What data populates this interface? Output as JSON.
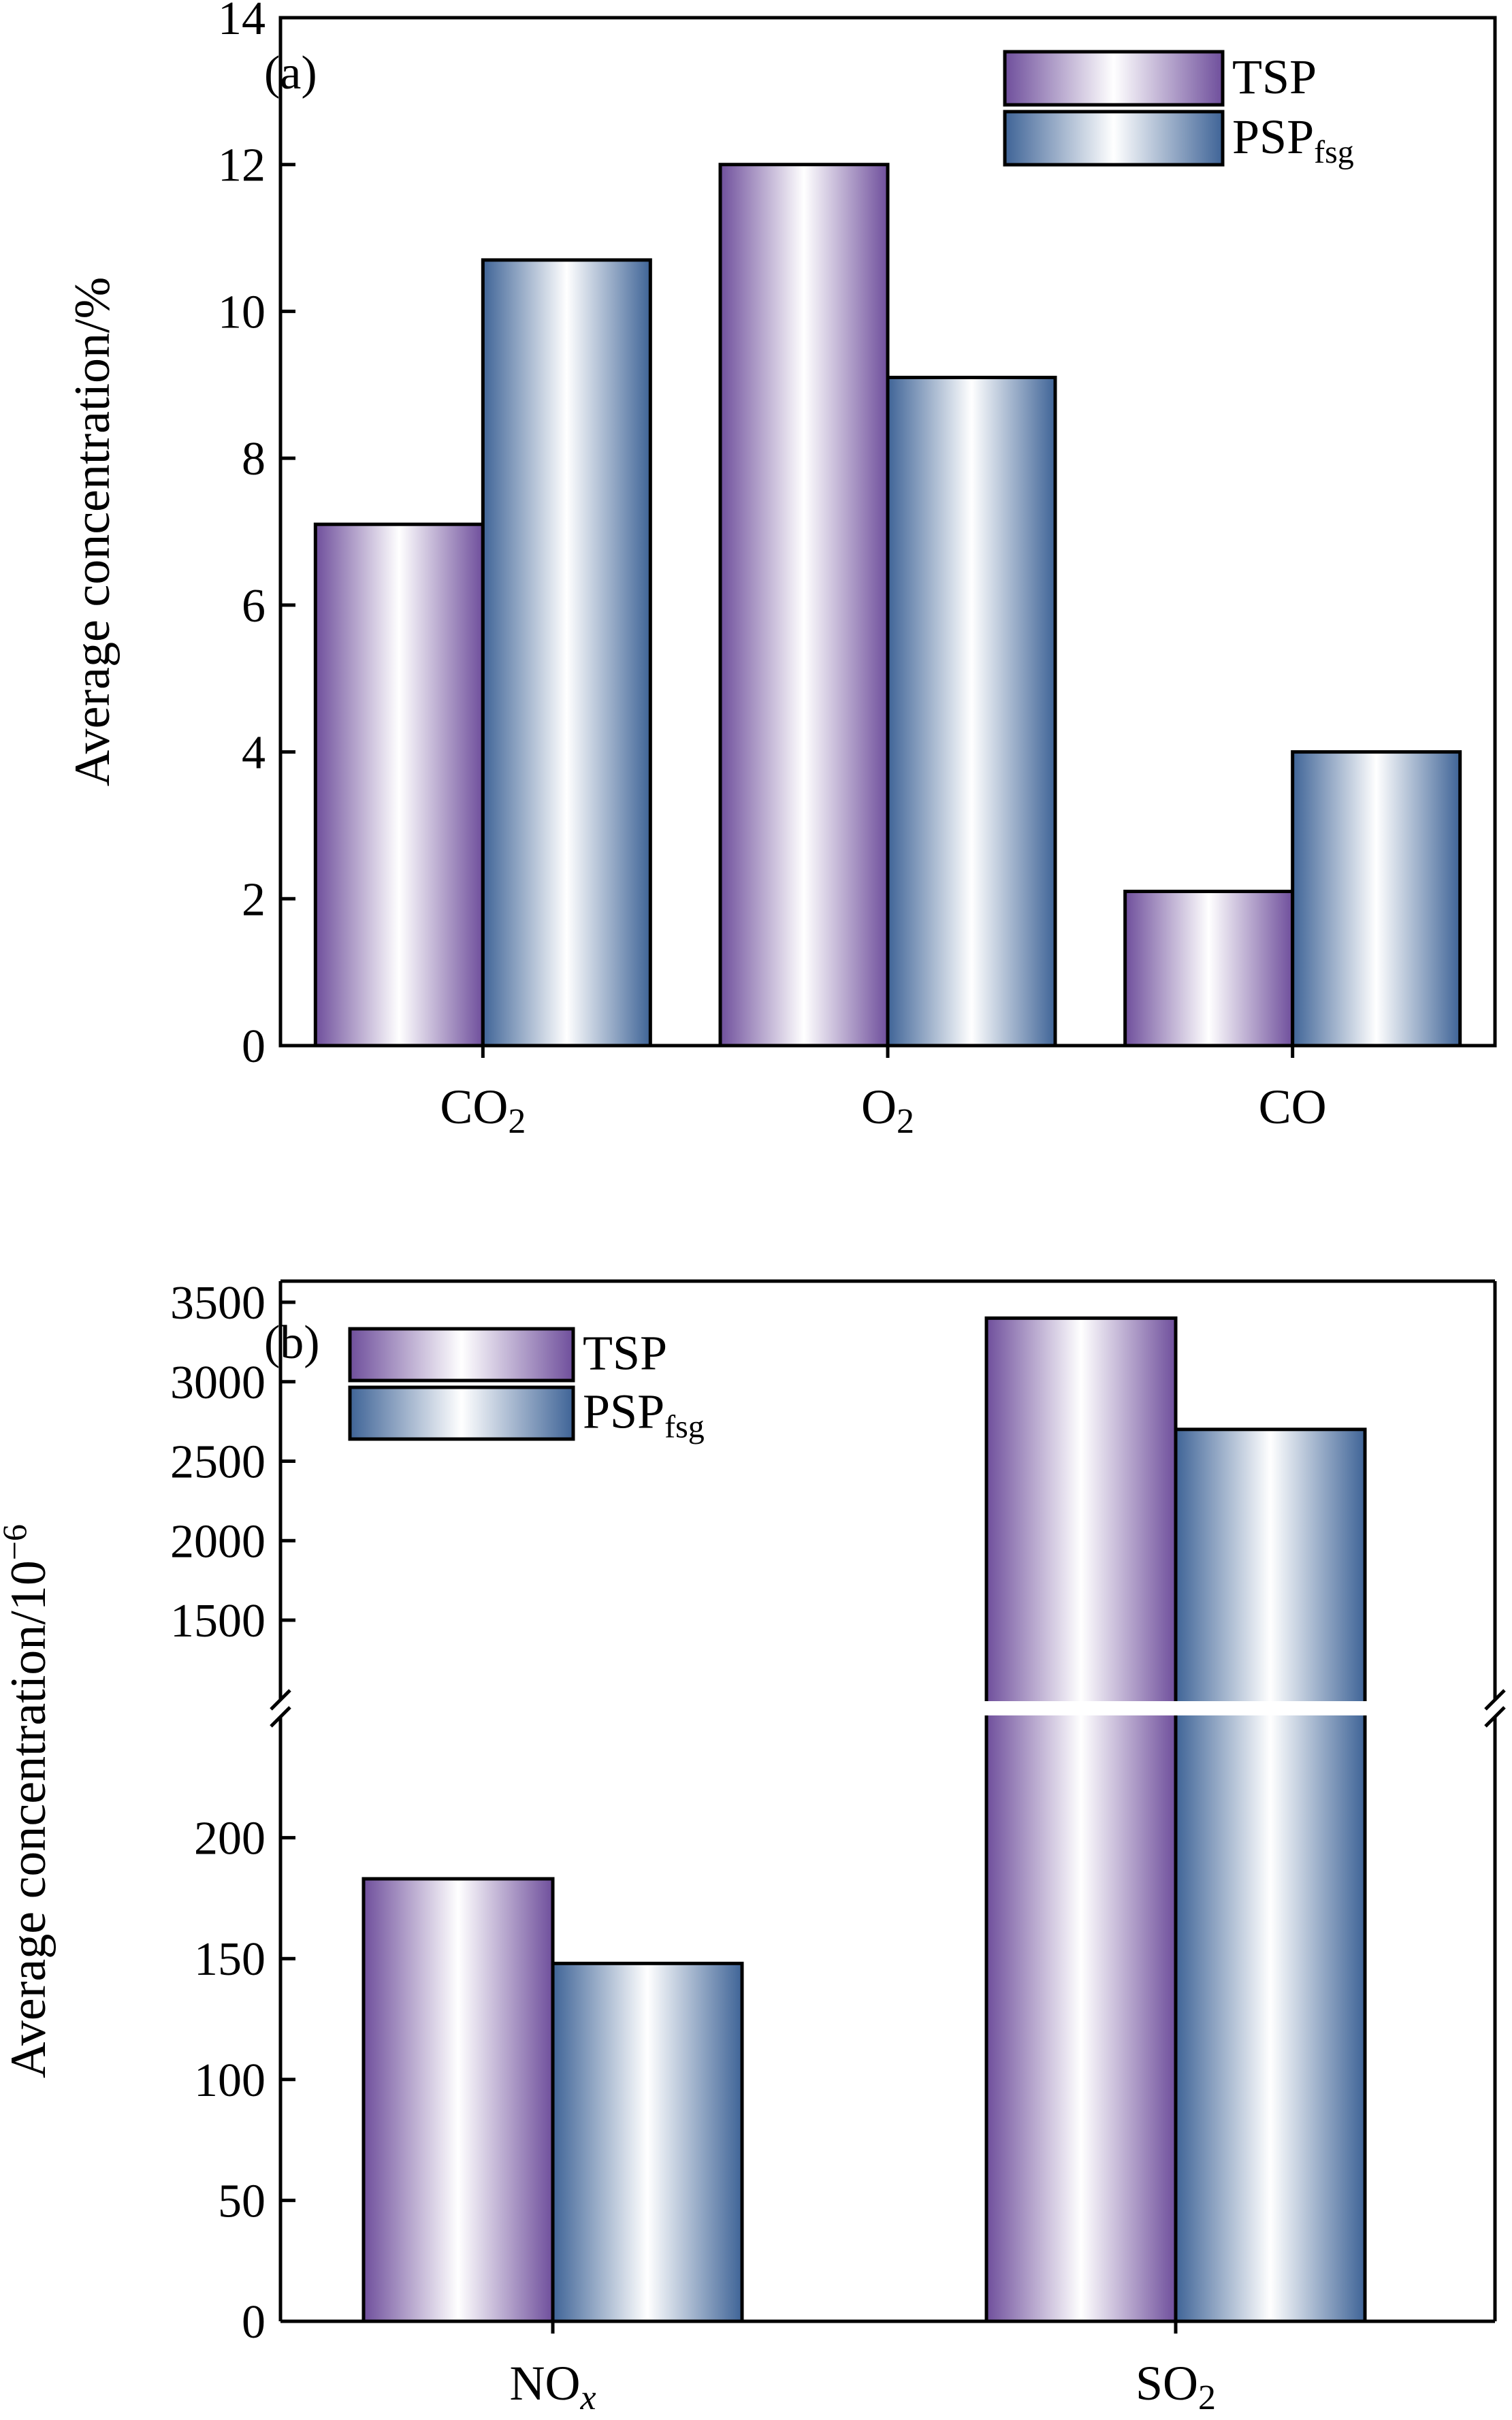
{
  "colors": {
    "tsp": "#6f4f9c",
    "tsp_light": "#ffffff",
    "psp": "#3f6497",
    "psp_light": "#ffffff",
    "axis": "#000000",
    "break_gap": "#ffffff"
  },
  "chart_data": [
    {
      "type": "bar",
      "panel_label": "(a)",
      "ylabel": "Average concentration/%",
      "categories": [
        {
          "base": "CO",
          "sub": "2"
        },
        {
          "base": "O",
          "sub": "2"
        },
        {
          "base": "CO",
          "sub": ""
        }
      ],
      "series": [
        {
          "name": {
            "base": "TSP",
            "sub": ""
          },
          "values": [
            7.1,
            12.0,
            2.1
          ]
        },
        {
          "name": {
            "base": "PSP",
            "sub": "fsg"
          },
          "values": [
            10.7,
            9.1,
            4.0
          ]
        }
      ],
      "ylim": [
        0,
        14
      ],
      "yticks": [
        0,
        2,
        4,
        6,
        8,
        10,
        12,
        14
      ],
      "legend": "top-right",
      "grid": false
    },
    {
      "type": "bar",
      "panel_label": "(b)",
      "ylabel": "Average concentration/10",
      "ylabel_sup": "−6",
      "categories": [
        {
          "base": "NO",
          "sub": "x",
          "sub_italic": true
        },
        {
          "base": "SO",
          "sub": "2"
        }
      ],
      "series": [
        {
          "name": {
            "base": "TSP",
            "sub": ""
          },
          "values": [
            183,
            3400
          ]
        },
        {
          "name": {
            "base": "PSP",
            "sub": "fsg"
          },
          "values": [
            148,
            2700
          ]
        }
      ],
      "ylim": [
        0,
        3500
      ],
      "axis_break": {
        "lower_range": [
          0,
          250
        ],
        "upper_range": [
          1000,
          3500
        ]
      },
      "yticks_lower": [
        0,
        50,
        100,
        150,
        200
      ],
      "yticks_upper": [
        1500,
        2000,
        2500,
        3000,
        3500
      ],
      "legend": "top-left",
      "grid": false
    }
  ]
}
